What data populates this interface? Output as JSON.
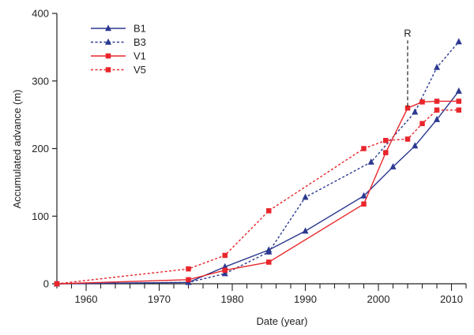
{
  "chart_data": {
    "type": "line",
    "title": "",
    "xlabel": "Date (year)",
    "ylabel": "Accumulated advance (m)",
    "xlim": [
      1956,
      2012
    ],
    "ylim": [
      0,
      400
    ],
    "xticks": [
      "1960",
      "1970",
      "1980",
      "1990",
      "2000",
      "2010"
    ],
    "xtick_values": [
      1960,
      1970,
      1980,
      1990,
      2000,
      2010
    ],
    "xminor_step": 2,
    "yticks": [
      "0",
      "100",
      "200",
      "300",
      "400"
    ],
    "ytick_values": [
      0,
      100,
      200,
      300,
      400
    ],
    "grid": false,
    "legend_position": "top-left",
    "series": [
      {
        "name": "B1",
        "color": "#2b3990",
        "line": "solid",
        "marker": "triangle",
        "x": [
          1956,
          1974,
          1979,
          1985,
          1990,
          1998,
          2002,
          2005,
          2008,
          2011
        ],
        "y": [
          0,
          2,
          25,
          50,
          78,
          130,
          173,
          204,
          243,
          285
        ]
      },
      {
        "name": "B3",
        "color": "#2b3990",
        "line": "dotted",
        "marker": "triangle",
        "x": [
          1956,
          1974,
          1979,
          1985,
          1990,
          1999,
          2005,
          2008,
          2011
        ],
        "y": [
          0,
          2,
          15,
          47,
          128,
          180,
          254,
          320,
          358
        ]
      },
      {
        "name": "V1",
        "color": "#e8262b",
        "line": "solid",
        "marker": "square",
        "x": [
          1956,
          1974,
          1979,
          1985,
          1998,
          2001,
          2004,
          2006,
          2008,
          2011
        ],
        "y": [
          0,
          6,
          20,
          32,
          118,
          194,
          260,
          269,
          270,
          270
        ]
      },
      {
        "name": "V5",
        "color": "#e8262b",
        "line": "dotted",
        "marker": "square",
        "x": [
          1956,
          1974,
          1979,
          1985,
          1998,
          2001,
          2004,
          2006,
          2008,
          2011
        ],
        "y": [
          0,
          22,
          42,
          108,
          200,
          212,
          214,
          237,
          257,
          257
        ]
      }
    ],
    "annotations": [
      {
        "text": "R",
        "x": 2004,
        "y_from": 262,
        "y_to": 360,
        "style": "dashed"
      }
    ]
  }
}
